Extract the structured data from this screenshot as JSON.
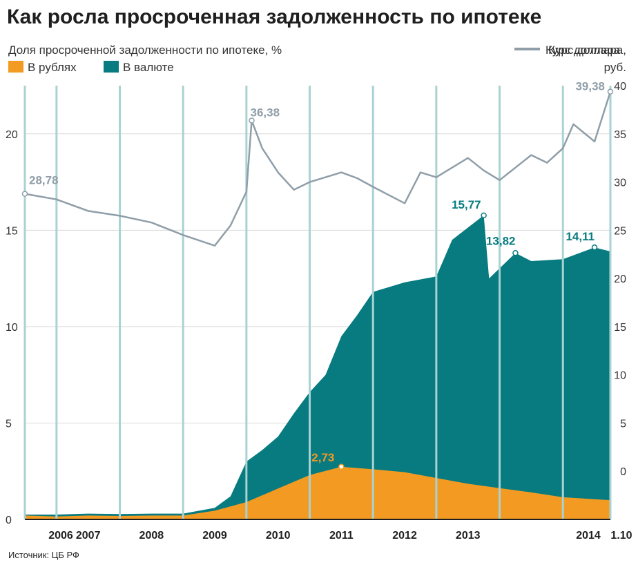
{
  "title": "Как росла просроченная задолженность по ипотеке",
  "source": "Источник: ЦБ РФ",
  "colors": {
    "rub": "#f39a23",
    "fx": "#077b80",
    "usd": "#8f9ea8",
    "year_line": "#a9d2d3",
    "grid": "#d9d9d9",
    "axis": "#1f1f1f"
  },
  "chart_data": {
    "type": "area",
    "title": "Как росла просроченная задолженность по ипотеке",
    "left_axis": {
      "label": "Доля просроченной задолженности по ипотеке, %",
      "ylim": [
        0,
        22.5
      ],
      "ticks": [
        0,
        5,
        10,
        15,
        20
      ]
    },
    "right_axis": {
      "label_line1": "Курс доллара,",
      "label_line2": "руб.",
      "ylim": [
        -5,
        40
      ],
      "ticks": [
        0,
        5,
        10,
        15,
        20,
        25,
        30,
        35,
        40
      ]
    },
    "x_labels": [
      "2006",
      "2007",
      "2008",
      "2009",
      "2010",
      "2011",
      "2012",
      "2013",
      "2014",
      "1.10"
    ],
    "x_range": [
      "2005-07",
      "2014-10"
    ],
    "grid": true,
    "series": [
      {
        "name": "В рублях",
        "kind": "area",
        "axis": "left",
        "points": [
          [
            "2005-07",
            0.2
          ],
          [
            "2006-01",
            0.15
          ],
          [
            "2006-07",
            0.2
          ],
          [
            "2007-01",
            0.18
          ],
          [
            "2007-07",
            0.2
          ],
          [
            "2008-01",
            0.2
          ],
          [
            "2008-07",
            0.45
          ],
          [
            "2009-01",
            0.9
          ],
          [
            "2009-07",
            1.6
          ],
          [
            "2010-01",
            2.3
          ],
          [
            "2010-07",
            2.73
          ],
          [
            "2011-01",
            2.6
          ],
          [
            "2011-07",
            2.45
          ],
          [
            "2012-01",
            2.15
          ],
          [
            "2012-07",
            1.85
          ],
          [
            "2013-01",
            1.62
          ],
          [
            "2013-07",
            1.4
          ],
          [
            "2014-01",
            1.15
          ],
          [
            "2014-07",
            1.05
          ],
          [
            "2014-10",
            1.0
          ]
        ]
      },
      {
        "name": "В валюте",
        "kind": "area",
        "axis": "left",
        "points": [
          [
            "2005-07",
            0.25
          ],
          [
            "2006-01",
            0.25
          ],
          [
            "2006-07",
            0.3
          ],
          [
            "2007-01",
            0.28
          ],
          [
            "2007-07",
            0.3
          ],
          [
            "2008-01",
            0.3
          ],
          [
            "2008-07",
            0.6
          ],
          [
            "2008-10",
            1.2
          ],
          [
            "2009-01",
            3.0
          ],
          [
            "2009-04",
            3.6
          ],
          [
            "2009-07",
            4.3
          ],
          [
            "2009-10",
            5.5
          ],
          [
            "2010-01",
            6.6
          ],
          [
            "2010-04",
            7.5
          ],
          [
            "2010-07",
            9.5
          ],
          [
            "2010-10",
            10.6
          ],
          [
            "2011-01",
            11.8
          ],
          [
            "2011-07",
            12.3
          ],
          [
            "2012-01",
            12.6
          ],
          [
            "2012-04",
            14.5
          ],
          [
            "2012-10",
            15.77
          ],
          [
            "2012-11",
            12.5
          ],
          [
            "2013-04",
            13.82
          ],
          [
            "2013-07",
            13.4
          ],
          [
            "2014-01",
            13.5
          ],
          [
            "2014-07",
            14.11
          ],
          [
            "2014-10",
            13.9
          ]
        ]
      },
      {
        "name": "Курс доллара",
        "kind": "line",
        "axis": "right",
        "points": [
          [
            "2005-07",
            28.78
          ],
          [
            "2006-01",
            28.2
          ],
          [
            "2006-07",
            27.0
          ],
          [
            "2007-01",
            26.5
          ],
          [
            "2007-07",
            25.8
          ],
          [
            "2008-01",
            24.5
          ],
          [
            "2008-07",
            23.4
          ],
          [
            "2008-10",
            25.5
          ],
          [
            "2009-01",
            29.0
          ],
          [
            "2009-02",
            36.38
          ],
          [
            "2009-04",
            33.5
          ],
          [
            "2009-07",
            31.0
          ],
          [
            "2009-10",
            29.2
          ],
          [
            "2010-01",
            30.0
          ],
          [
            "2010-07",
            31.0
          ],
          [
            "2010-10",
            30.4
          ],
          [
            "2011-01",
            29.5
          ],
          [
            "2011-07",
            27.8
          ],
          [
            "2011-10",
            31.0
          ],
          [
            "2012-01",
            30.5
          ],
          [
            "2012-07",
            32.5
          ],
          [
            "2012-10",
            31.2
          ],
          [
            "2013-01",
            30.2
          ],
          [
            "2013-07",
            32.8
          ],
          [
            "2013-10",
            32.0
          ],
          [
            "2014-01",
            33.5
          ],
          [
            "2014-03",
            36.0
          ],
          [
            "2014-07",
            34.2
          ],
          [
            "2014-10",
            39.38
          ]
        ]
      }
    ],
    "annotations": [
      {
        "text": "28,78",
        "series": "Курс доллара",
        "x": "2005-07",
        "y": 28.78
      },
      {
        "text": "36,38",
        "series": "Курс доллара",
        "x": "2009-02",
        "y": 36.38
      },
      {
        "text": "39,38",
        "series": "Курс доллара",
        "x": "2014-10",
        "y": 39.38
      },
      {
        "text": "2,73",
        "series": "В рублях",
        "x": "2010-07",
        "y": 2.73
      },
      {
        "text": "15,77",
        "series": "В валюте",
        "x": "2012-10",
        "y": 15.77
      },
      {
        "text": "13,82",
        "series": "В валюте",
        "x": "2013-04",
        "y": 13.82
      },
      {
        "text": "14,11",
        "series": "В валюте",
        "x": "2014-07",
        "y": 14.11
      }
    ]
  }
}
